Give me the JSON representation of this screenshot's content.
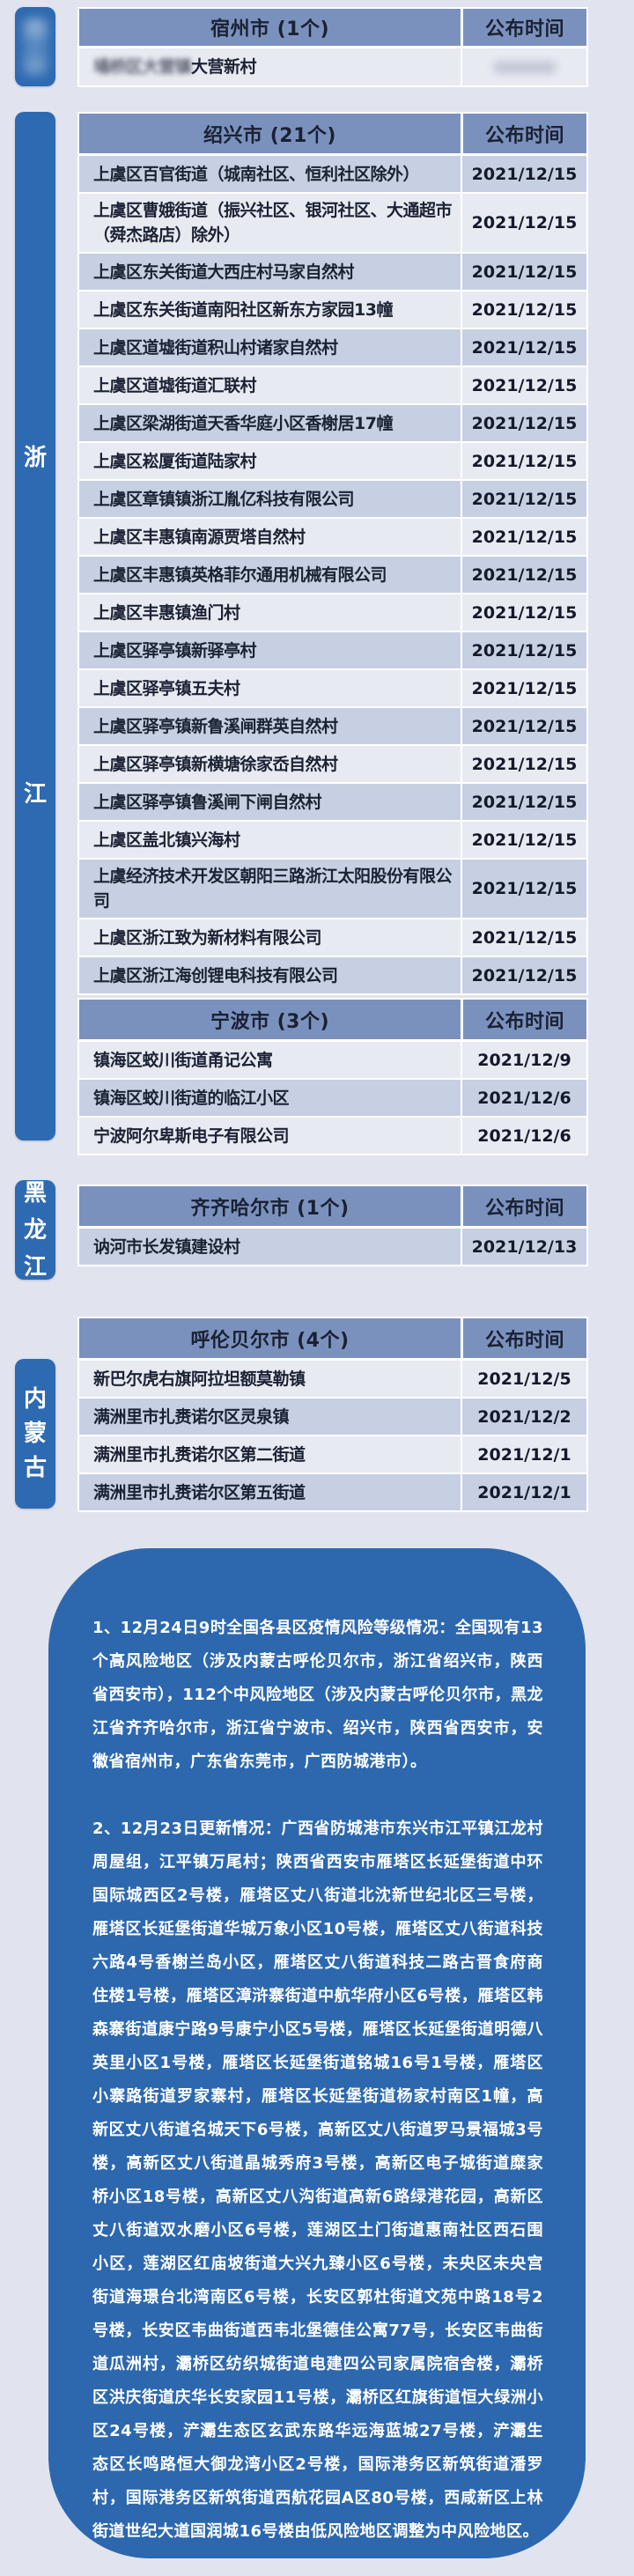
{
  "colors": {
    "page_background": "#e1e4ee",
    "accent_blue": "#2e6ab1",
    "summary_box_blue": "#2d68ae",
    "table_header_bg": "#7b91bd",
    "row_dark": "#c7d0e2",
    "row_light": "#e8eaf2",
    "dark_text": "#1a2133",
    "white_text": "#ffffff"
  },
  "date_header": "公布时间",
  "sidebar": {
    "tabs": [
      {
        "id": "blurred-province",
        "label": "",
        "blurred": true
      },
      {
        "id": "zhejiang",
        "label": "浙江"
      },
      {
        "id": "heilongjiang",
        "label": "黑龙江"
      },
      {
        "id": "neimenggu",
        "label": "内蒙古"
      }
    ]
  },
  "tables": [
    {
      "city": "宿州市 (1个)",
      "first_shade": "light",
      "rows": [
        {
          "name": "大营新村",
          "blur_prefix": "埇桥区大营镇",
          "date": "",
          "date_blurred": true
        }
      ]
    },
    {
      "city": "绍兴市 (21个)",
      "first_shade": "dark",
      "rows": [
        {
          "name": "上虞区百官街道（城南社区、恒利社区除外）",
          "date": "2021/12/15"
        },
        {
          "name": "上虞区曹娥街道（振兴社区、银河社区、大通超市（舜杰路店）除外）",
          "date": "2021/12/15"
        },
        {
          "name": "上虞区东关街道大西庄村马家自然村",
          "date": "2021/12/15"
        },
        {
          "name": "上虞区东关街道南阳社区新东方家园13幢",
          "date": "2021/12/15"
        },
        {
          "name": "上虞区道墟街道积山村诸家自然村",
          "date": "2021/12/15"
        },
        {
          "name": "上虞区道墟街道汇联村",
          "date": "2021/12/15"
        },
        {
          "name": "上虞区梁湖街道天香华庭小区香榭居17幢",
          "date": "2021/12/15"
        },
        {
          "name": "上虞区崧厦街道陆家村",
          "date": "2021/12/15"
        },
        {
          "name": "上虞区章镇镇浙江胤亿科技有限公司",
          "date": "2021/12/15"
        },
        {
          "name": "上虞区丰惠镇南源贾塔自然村",
          "date": "2021/12/15"
        },
        {
          "name": "上虞区丰惠镇英格菲尔通用机械有限公司",
          "date": "2021/12/15"
        },
        {
          "name": "上虞区丰惠镇渔门村",
          "date": "2021/12/15"
        },
        {
          "name": "上虞区驿亭镇新驿亭村",
          "date": "2021/12/15"
        },
        {
          "name": "上虞区驿亭镇五夫村",
          "date": "2021/12/15"
        },
        {
          "name": "上虞区驿亭镇新鲁溪闸群英自然村",
          "date": "2021/12/15"
        },
        {
          "name": "上虞区驿亭镇新横塘徐家岙自然村",
          "date": "2021/12/15"
        },
        {
          "name": "上虞区驿亭镇鲁溪闸下闸自然村",
          "date": "2021/12/15"
        },
        {
          "name": "上虞区盖北镇兴海村",
          "date": "2021/12/15"
        },
        {
          "name": "上虞经济技术开发区朝阳三路浙江太阳股份有限公司",
          "date": "2021/12/15"
        },
        {
          "name": "上虞区浙江致为新材料有限公司",
          "date": "2021/12/15"
        },
        {
          "name": "上虞区浙江海创锂电科技有限公司",
          "date": "2021/12/15"
        }
      ]
    },
    {
      "city": "宁波市 (3个)",
      "first_shade": "light",
      "rows": [
        {
          "name": "镇海区蛟川街道甬记公寓",
          "date": "2021/12/9"
        },
        {
          "name": "镇海区蛟川街道的临江小区",
          "date": "2021/12/6"
        },
        {
          "name": "宁波阿尔卑斯电子有限公司",
          "date": "2021/12/6"
        }
      ]
    },
    {
      "city": "齐齐哈尔市 (1个)",
      "first_shade": "dark",
      "rows": [
        {
          "name": "讷河市长发镇建设村",
          "date": "2021/12/13"
        }
      ]
    },
    {
      "city": "呼伦贝尔市 (4个)",
      "first_shade": "light",
      "rows": [
        {
          "name": "新巴尔虎右旗阿拉坦额莫勒镇",
          "date": "2021/12/5"
        },
        {
          "name": "满洲里市扎赉诺尔区灵泉镇",
          "date": "2021/12/2"
        },
        {
          "name": "满洲里市扎赉诺尔区第二街道",
          "date": "2021/12/1"
        },
        {
          "name": "满洲里市扎赉诺尔区第五街道",
          "date": "2021/12/1"
        }
      ]
    }
  ],
  "notes": [
    "1、12月24日9时全国各县区疫情风险等级情况：全国现有13个高风险地区（涉及内蒙古呼伦贝尔市，浙江省绍兴市，陕西省西安市），112个中风险地区（涉及内蒙古呼伦贝尔市，黑龙江省齐齐哈尔市，浙江省宁波市、绍兴市，陕西省西安市，安徽省宿州市，广东省东莞市，广西防城港市）。",
    "2、12月23日更新情况：广西省防城港市东兴市江平镇江龙村周屋组，江平镇万尾村；陕西省西安市雁塔区长延堡街道中环国际城西区2号楼，雁塔区丈八街道北沈新世纪北区三号楼，雁塔区长延堡街道华城万象小区10号楼，雁塔区丈八街道科技六路4号香榭兰岛小区，雁塔区丈八街道科技二路古晋食府商住楼1号楼，雁塔区漳浒寨街道中航华府小区6号楼，雁塔区韩森寨街道康宁路9号康宁小区5号楼，雁塔区长延堡街道明德八英里小区1号楼，雁塔区长延堡街道铭城16号1号楼，雁塔区小寨路街道罗家寨村，雁塔区长延堡街道杨家村南区1幢，高新区丈八街道名城天下6号楼，高新区丈八街道罗马景福城3号楼，高新区丈八街道晶城秀府3号楼，高新区电子城街道糜家桥小区18号楼，高新区丈八沟街道高新6路绿港花园，高新区丈八街道双水磨小区6号楼，莲湖区土门街道惠南社区西石围小区，莲湖区红庙坡街道大兴九臻小区6号楼，未央区未央宫街道海璟台北湾南区6号楼，长安区郭杜街道文苑中路18号2号楼，长安区韦曲街道西韦北堡德佳公寓77号，长安区韦曲街道瓜洲村，灞桥区纺织城街道电建四公司家属院宿舍楼，灞桥区洪庆街道庆华长安家园11号楼，灞桥区红旗街道恒大绿洲小区24号楼，浐灞生态区玄武东路华远海蓝城27号楼，浐灞生态区长鸣路恒大御龙湾小区2号楼，国际港务区新筑街道潘罗村，国际港务区新筑街道西航花园A区80号楼，西咸新区上林街道世纪大道国润城16号楼由低风险地区调整为中风险地区。"
  ]
}
